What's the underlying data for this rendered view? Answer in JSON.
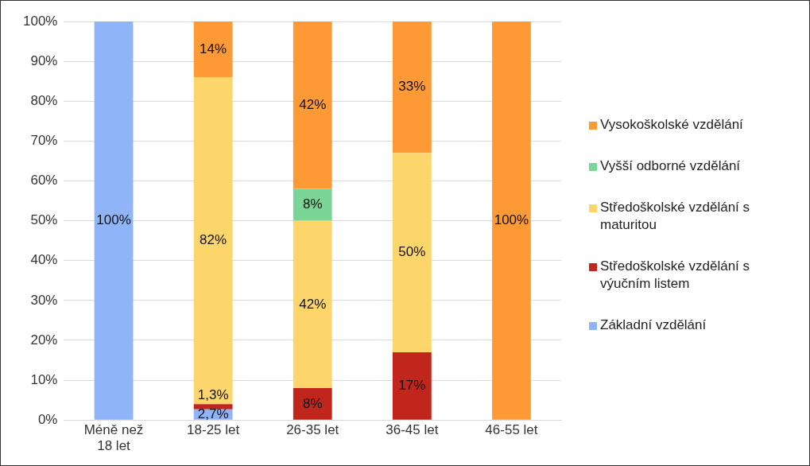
{
  "chart_data": {
    "type": "bar",
    "stacked": true,
    "categories": [
      "Méně než 18 let",
      "18-25 let",
      "26-35 let",
      "36-45 let",
      "46-55 let"
    ],
    "series": [
      {
        "name": "Základní vzdělání",
        "color": "#8fb4f7",
        "values": [
          100,
          2.7,
          null,
          null,
          null
        ],
        "value_labels": [
          "100%",
          "2,7%",
          null,
          null,
          null
        ]
      },
      {
        "name": "Středoškolské vzdělání s výučním listem",
        "color": "#c0261b",
        "values": [
          null,
          1.3,
          8,
          17,
          null
        ],
        "value_labels": [
          null,
          "1,3%",
          "8%",
          "17%",
          null
        ]
      },
      {
        "name": "Středoškolské vzdělání s maturitou",
        "color": "#fcd56b",
        "values": [
          null,
          82,
          42,
          50,
          null
        ],
        "value_labels": [
          null,
          "82%",
          "42%",
          "50%",
          null
        ]
      },
      {
        "name": "Vyšší odborné vzdělání",
        "color": "#7ad596",
        "values": [
          null,
          null,
          8,
          null,
          null
        ],
        "value_labels": [
          null,
          null,
          "8%",
          null,
          null
        ]
      },
      {
        "name": "Vysokoškolské vzdělání",
        "color": "#fd9a36",
        "values": [
          null,
          14,
          42,
          33,
          100
        ],
        "value_labels": [
          null,
          "14%",
          "42%",
          "33%",
          "100%"
        ]
      }
    ],
    "ylim": [
      0,
      100
    ],
    "yticks": [
      {
        "value": 0,
        "label": "0%"
      },
      {
        "value": 10,
        "label": "10%"
      },
      {
        "value": 20,
        "label": "20%"
      },
      {
        "value": 30,
        "label": "30%"
      },
      {
        "value": 40,
        "label": "40%"
      },
      {
        "value": 50,
        "label": "50%"
      },
      {
        "value": 60,
        "label": "60%"
      },
      {
        "value": 70,
        "label": "70%"
      },
      {
        "value": 80,
        "label": "80%"
      },
      {
        "value": 90,
        "label": "90%"
      },
      {
        "value": 100,
        "label": "100%"
      }
    ],
    "grid": "y",
    "legend": "right"
  }
}
